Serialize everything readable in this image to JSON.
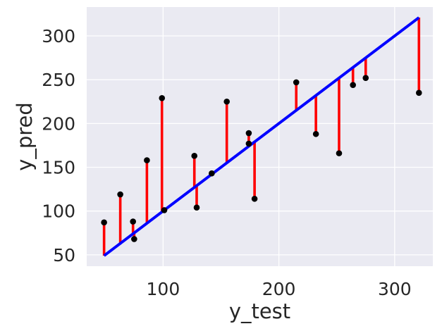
{
  "chart_data": {
    "type": "scatter",
    "xlabel": "y_test",
    "ylabel": "y_pred",
    "xlim": [
      34,
      333
    ],
    "ylim": [
      37,
      333
    ],
    "x_ticks": [
      100,
      200,
      300
    ],
    "y_ticks": [
      50,
      100,
      150,
      200,
      250,
      300
    ],
    "x_tick_labels": [
      "100",
      "200",
      "300"
    ],
    "y_tick_labels": [
      "50",
      "100",
      "150",
      "200",
      "250",
      "300"
    ],
    "grid": true,
    "legend": "none",
    "colors": {
      "background": "#eaeaf2",
      "grid": "#ffffff",
      "points": "#000000",
      "fit_line": "#0000ff",
      "residuals": "#ff0000",
      "text": "#262626"
    },
    "fit_line": {
      "x": [
        49,
        321
      ],
      "y": [
        49,
        321
      ]
    },
    "points": [
      {
        "x": 49,
        "y": 87
      },
      {
        "x": 63,
        "y": 119
      },
      {
        "x": 74,
        "y": 88
      },
      {
        "x": 75,
        "y": 68
      },
      {
        "x": 86,
        "y": 158
      },
      {
        "x": 99,
        "y": 229
      },
      {
        "x": 101,
        "y": 101
      },
      {
        "x": 127,
        "y": 163
      },
      {
        "x": 129,
        "y": 104
      },
      {
        "x": 142,
        "y": 143
      },
      {
        "x": 155,
        "y": 225
      },
      {
        "x": 174,
        "y": 189
      },
      {
        "x": 174,
        "y": 177
      },
      {
        "x": 179,
        "y": 114
      },
      {
        "x": 215,
        "y": 247
      },
      {
        "x": 232,
        "y": 188
      },
      {
        "x": 252,
        "y": 166
      },
      {
        "x": 264,
        "y": 244
      },
      {
        "x": 275,
        "y": 252
      },
      {
        "x": 321,
        "y": 235
      }
    ]
  }
}
